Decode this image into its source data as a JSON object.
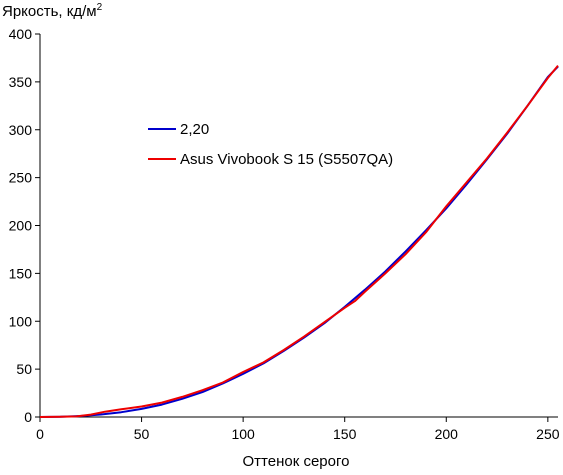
{
  "chart_data": {
    "type": "line",
    "ylabel": "Яркость, кд/м",
    "ylabel_superscript": "2",
    "xlabel": "Оттенок серого",
    "xlim": [
      0,
      255
    ],
    "ylim": [
      0,
      400
    ],
    "xticks": [
      0,
      50,
      100,
      150,
      200,
      250
    ],
    "yticks": [
      0,
      50,
      100,
      150,
      200,
      250,
      300,
      350,
      400
    ],
    "grid": false,
    "legend_position": "upper-left-inside",
    "series": [
      {
        "name": "2,20",
        "color": "#0000cc",
        "x": [
          0,
          10,
          20,
          30,
          40,
          50,
          60,
          70,
          80,
          90,
          100,
          110,
          120,
          130,
          140,
          150,
          160,
          170,
          180,
          190,
          200,
          210,
          220,
          230,
          240,
          250,
          255
        ],
        "y": [
          0,
          0.2,
          1.0,
          2.6,
          5.0,
          8.5,
          13,
          19,
          26,
          35,
          45,
          56,
          69,
          83,
          98,
          115,
          133,
          152,
          173,
          195,
          218,
          243,
          269,
          296,
          325,
          355,
          366
        ]
      },
      {
        "name": "Asus Vivobook S 15 (S5507QA)",
        "color": "#ee0000",
        "x": [
          0,
          10,
          18,
          25,
          32,
          40,
          50,
          60,
          70,
          80,
          90,
          100,
          110,
          120,
          130,
          140,
          150,
          155,
          160,
          170,
          180,
          190,
          200,
          210,
          220,
          230,
          240,
          250,
          255
        ],
        "y": [
          0,
          0.2,
          0.6,
          2.5,
          5.5,
          8,
          11,
          15,
          21,
          28,
          36,
          47,
          57,
          70,
          84,
          99,
          114,
          121,
          131,
          150,
          170,
          193,
          220,
          245,
          270,
          297,
          325,
          354,
          367
        ]
      }
    ]
  }
}
